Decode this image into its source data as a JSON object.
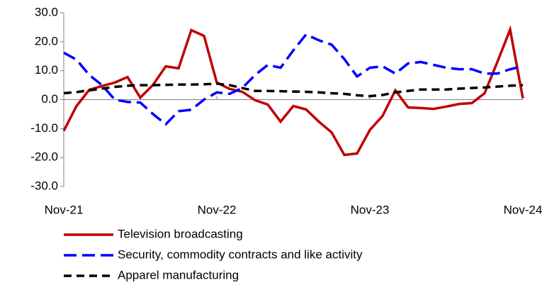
{
  "chart_data": {
    "type": "line",
    "categories": [
      "Nov-21",
      null,
      null,
      null,
      null,
      null,
      null,
      null,
      null,
      null,
      null,
      null,
      "Nov-22",
      null,
      null,
      null,
      null,
      null,
      null,
      null,
      null,
      null,
      null,
      null,
      "Nov-23",
      null,
      null,
      null,
      null,
      null,
      null,
      null,
      null,
      null,
      null,
      null,
      "Nov-24"
    ],
    "series": [
      {
        "name": "Television broadcasting",
        "color": "#c00000",
        "dash": "solid",
        "values": [
          -10.8,
          -2.2,
          3.4,
          4.7,
          5.9,
          7.8,
          0.7,
          5.1,
          11.5,
          10.8,
          24.0,
          22.0,
          5.9,
          3.7,
          2.7,
          -0.2,
          -1.7,
          -7.6,
          -2.2,
          -3.4,
          -7.6,
          -11.3,
          -19.1,
          -18.6,
          -10.5,
          -5.6,
          3.2,
          -2.7,
          -2.9,
          -3.2,
          -2.4,
          -1.5,
          -1.2,
          2.2,
          13.0,
          24.2,
          0.5
        ]
      },
      {
        "name": "Security, commodity contracts and like activity",
        "color": "#0000ff",
        "dash": "long",
        "values": [
          16.2,
          13.8,
          8.5,
          5.0,
          0.0,
          -0.8,
          -1.0,
          -5.0,
          -8.5,
          -4.0,
          -3.5,
          0.0,
          2.5,
          2.0,
          4.0,
          8.5,
          12.0,
          11.0,
          17.0,
          22.5,
          20.5,
          19.0,
          14.0,
          8.0,
          11.0,
          11.5,
          9.0,
          12.5,
          13.0,
          12.0,
          11.0,
          10.5,
          10.5,
          9.0,
          9.0,
          10.5,
          11.5
        ]
      },
      {
        "name": "Apparel manufacturing",
        "color": "#000000",
        "dash": "short",
        "values": [
          2.2,
          2.6,
          3.2,
          3.8,
          4.4,
          4.8,
          5.0,
          5.0,
          5.1,
          5.2,
          5.2,
          5.3,
          5.5,
          5.0,
          4.0,
          3.0,
          3.0,
          2.9,
          2.8,
          2.7,
          2.5,
          2.2,
          2.0,
          1.5,
          1.2,
          1.6,
          2.5,
          3.0,
          3.5,
          3.5,
          3.5,
          3.8,
          4.0,
          4.2,
          4.5,
          4.8,
          5.0
        ]
      }
    ],
    "ylim": [
      -30,
      30
    ],
    "yticks": [
      {
        "value": -30,
        "label": "-30.0"
      },
      {
        "value": -20,
        "label": "-20.0"
      },
      {
        "value": -10,
        "label": "-10.0"
      },
      {
        "value": 0,
        "label": "0.0"
      },
      {
        "value": 10,
        "label": "10.0"
      },
      {
        "value": 20,
        "label": "20.0"
      },
      {
        "value": 30,
        "label": "30.0"
      }
    ],
    "grid": false,
    "legend": "bottom"
  }
}
